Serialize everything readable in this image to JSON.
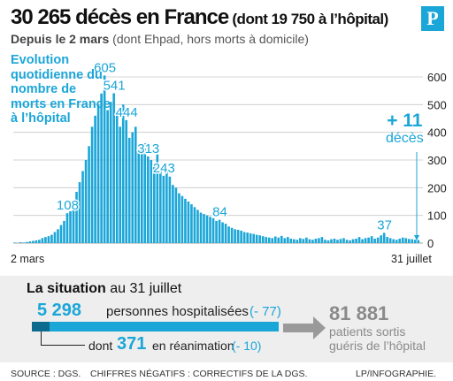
{
  "header": {
    "title_main": "30 265 décès  en France",
    "title_sub": " (dont 19 750 à l’hôpital)",
    "logo": "P",
    "subtitle_bold": "Depuis le 2 mars",
    "subtitle_rest": " (dont Ehpad, hors morts à domicile)"
  },
  "chart_description": "Evolution quotidienne du nombre de morts en France à l’hôpital",
  "today": {
    "value": "+ 11",
    "label": "décès"
  },
  "chart_data": {
    "type": "bar",
    "title": "Evolution quotidienne du nombre de morts en France à l’hôpital",
    "x_start_label": "2 mars",
    "x_end_label": "31 juillet",
    "ylim": [
      0,
      600
    ],
    "yticks": [
      0,
      100,
      200,
      300,
      400,
      500,
      600
    ],
    "grid": true,
    "color": "#1ba6d8",
    "values": [
      2,
      1,
      3,
      2,
      4,
      6,
      8,
      10,
      12,
      18,
      22,
      25,
      30,
      40,
      50,
      65,
      80,
      108,
      115,
      150,
      185,
      220,
      260,
      300,
      350,
      420,
      460,
      500,
      540,
      605,
      480,
      510,
      541,
      470,
      420,
      500,
      444,
      380,
      400,
      420,
      330,
      350,
      360,
      313,
      300,
      280,
      320,
      260,
      243,
      270,
      240,
      210,
      200,
      180,
      170,
      160,
      150,
      140,
      130,
      120,
      110,
      105,
      100,
      95,
      90,
      80,
      84,
      75,
      70,
      60,
      55,
      50,
      48,
      45,
      40,
      38,
      35,
      33,
      30,
      28,
      25,
      22,
      20,
      18,
      24,
      20,
      26,
      18,
      22,
      16,
      14,
      12,
      18,
      15,
      20,
      14,
      12,
      16,
      18,
      22,
      12,
      10,
      14,
      16,
      12,
      15,
      18,
      12,
      10,
      14,
      16,
      22,
      14,
      18,
      20,
      25,
      16,
      20,
      28,
      37,
      22,
      18,
      14,
      12,
      16,
      20,
      18,
      15,
      14,
      12,
      11
    ],
    "data_labels": [
      {
        "index": 17,
        "label": "108"
      },
      {
        "index": 29,
        "label": "605"
      },
      {
        "index": 32,
        "label": "541"
      },
      {
        "index": 36,
        "label": "444"
      },
      {
        "index": 43,
        "label": "313"
      },
      {
        "index": 48,
        "label": "243"
      },
      {
        "index": 66,
        "label": "84"
      },
      {
        "index": 119,
        "label": "37"
      }
    ]
  },
  "situation": {
    "title_bold": "La situation",
    "title_rest": " au 31 juillet",
    "hospitalised_value": "5 298",
    "hospitalised_label": "personnes hospitalisées",
    "hospitalised_change": "(- 77)",
    "icu_prefix": "dont",
    "icu_value": "371",
    "icu_label": "en réanimation",
    "icu_change": "(- 10)",
    "discharged_value": "81 881",
    "discharged_label": "patients sortis guéris de l’hôpital"
  },
  "footer": {
    "source": "SOURCE : DGS.",
    "note": "CHIFFRES NÉGATIFS : CORRECTIFS DE LA DGS.",
    "credit": "LP/INFOGRAPHIE."
  }
}
